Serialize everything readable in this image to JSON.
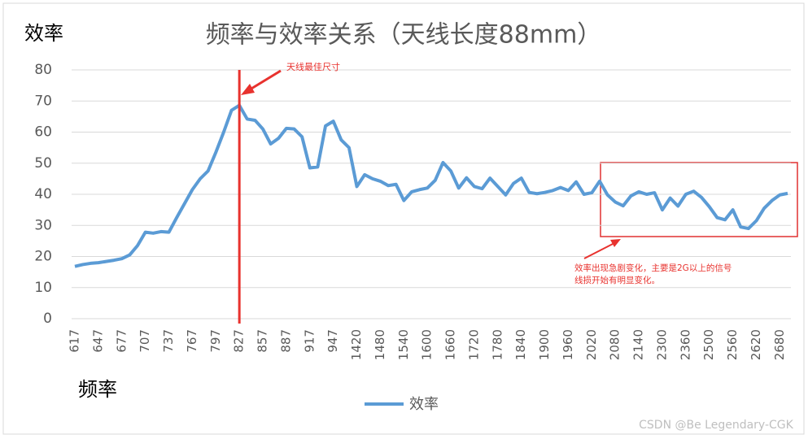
{
  "chart_data": {
    "type": "line",
    "title": "频率与效率关系（天线长度88mm）",
    "y_label": "效率",
    "x_label": "频率",
    "categories": [
      "617",
      null,
      null,
      "647",
      null,
      null,
      "677",
      null,
      null,
      "707",
      null,
      null,
      "737",
      null,
      null,
      "767",
      null,
      null,
      "797",
      null,
      null,
      "827",
      null,
      null,
      "857",
      null,
      null,
      "887",
      null,
      null,
      "917",
      null,
      null,
      "947",
      null,
      null,
      "1420",
      null,
      null,
      "1480",
      null,
      null,
      "1540",
      null,
      null,
      "1600",
      null,
      null,
      "1660",
      null,
      null,
      "1720",
      null,
      null,
      "1780",
      null,
      null,
      "1840",
      null,
      null,
      "1900",
      null,
      null,
      "1960",
      null,
      null,
      "2020",
      null,
      null,
      "2080",
      null,
      null,
      "2140",
      null,
      null,
      "2300",
      null,
      null,
      "2360",
      null,
      null,
      "2500",
      null,
      null,
      "2560",
      null,
      null,
      "2620",
      null,
      null,
      "2680",
      null
    ],
    "series": [
      {
        "name": "效率",
        "color": "#5b9bd5",
        "values": [
          16.8,
          17.4,
          17.8,
          18.0,
          18.4,
          18.8,
          19.3,
          20.5,
          23.5,
          27.8,
          27.5,
          28.0,
          27.8,
          32.5,
          37,
          41.5,
          45,
          47.5,
          53.5,
          60,
          67,
          68.6,
          64.2,
          63.8,
          61,
          56.2,
          58,
          61.2,
          61,
          58.5,
          48.5,
          48.8,
          62,
          63.5,
          57.5,
          55,
          42.5,
          46.3,
          45,
          44.2,
          42.8,
          43.2,
          38,
          40.8,
          41.5,
          42,
          44.5,
          50.2,
          47.5,
          42,
          45.3,
          42.5,
          41.8,
          45.2,
          42.5,
          39.8,
          43.5,
          45.2,
          40.6,
          40.2,
          40.6,
          41.2,
          42.2,
          41.2,
          44,
          40,
          40.5,
          44.2,
          39.8,
          37.5,
          36.3,
          39.5,
          40.8,
          40,
          40.5,
          35,
          38.8,
          36.2,
          40,
          41,
          39,
          36,
          32.5,
          31.8,
          35,
          29.5,
          29,
          31.5,
          35.5,
          38,
          39.8,
          40.3
        ]
      }
    ],
    "ylim": [
      0,
      80
    ],
    "yticks": [
      0,
      10,
      20,
      30,
      40,
      50,
      60,
      70,
      80
    ],
    "grid": true,
    "legend": "bottom",
    "annotations": [
      {
        "text": "天线最佳尺寸",
        "x": "827"
      },
      {
        "text": [
          "效率出现急剧变化，主要是2G以上的信号",
          "线损开始有明显变化。"
        ]
      }
    ],
    "watermark": "CSDN @Be Legendary-CGK"
  }
}
